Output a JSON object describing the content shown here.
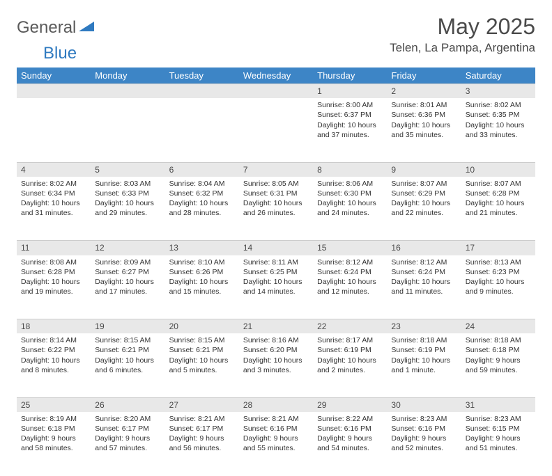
{
  "logo": {
    "word1": "General",
    "word2": "Blue"
  },
  "title": "May 2025",
  "location": "Telen, La Pampa, Argentina",
  "header_bg": "#3d85c6",
  "daynum_bg": "#e8e8e8",
  "divider_color": "#3d85c6",
  "days": [
    "Sunday",
    "Monday",
    "Tuesday",
    "Wednesday",
    "Thursday",
    "Friday",
    "Saturday"
  ],
  "weeks": [
    [
      null,
      null,
      null,
      null,
      {
        "n": "1",
        "sr": "Sunrise: 8:00 AM",
        "ss": "Sunset: 6:37 PM",
        "dl": "Daylight: 10 hours and 37 minutes."
      },
      {
        "n": "2",
        "sr": "Sunrise: 8:01 AM",
        "ss": "Sunset: 6:36 PM",
        "dl": "Daylight: 10 hours and 35 minutes."
      },
      {
        "n": "3",
        "sr": "Sunrise: 8:02 AM",
        "ss": "Sunset: 6:35 PM",
        "dl": "Daylight: 10 hours and 33 minutes."
      }
    ],
    [
      {
        "n": "4",
        "sr": "Sunrise: 8:02 AM",
        "ss": "Sunset: 6:34 PM",
        "dl": "Daylight: 10 hours and 31 minutes."
      },
      {
        "n": "5",
        "sr": "Sunrise: 8:03 AM",
        "ss": "Sunset: 6:33 PM",
        "dl": "Daylight: 10 hours and 29 minutes."
      },
      {
        "n": "6",
        "sr": "Sunrise: 8:04 AM",
        "ss": "Sunset: 6:32 PM",
        "dl": "Daylight: 10 hours and 28 minutes."
      },
      {
        "n": "7",
        "sr": "Sunrise: 8:05 AM",
        "ss": "Sunset: 6:31 PM",
        "dl": "Daylight: 10 hours and 26 minutes."
      },
      {
        "n": "8",
        "sr": "Sunrise: 8:06 AM",
        "ss": "Sunset: 6:30 PM",
        "dl": "Daylight: 10 hours and 24 minutes."
      },
      {
        "n": "9",
        "sr": "Sunrise: 8:07 AM",
        "ss": "Sunset: 6:29 PM",
        "dl": "Daylight: 10 hours and 22 minutes."
      },
      {
        "n": "10",
        "sr": "Sunrise: 8:07 AM",
        "ss": "Sunset: 6:28 PM",
        "dl": "Daylight: 10 hours and 21 minutes."
      }
    ],
    [
      {
        "n": "11",
        "sr": "Sunrise: 8:08 AM",
        "ss": "Sunset: 6:28 PM",
        "dl": "Daylight: 10 hours and 19 minutes."
      },
      {
        "n": "12",
        "sr": "Sunrise: 8:09 AM",
        "ss": "Sunset: 6:27 PM",
        "dl": "Daylight: 10 hours and 17 minutes."
      },
      {
        "n": "13",
        "sr": "Sunrise: 8:10 AM",
        "ss": "Sunset: 6:26 PM",
        "dl": "Daylight: 10 hours and 15 minutes."
      },
      {
        "n": "14",
        "sr": "Sunrise: 8:11 AM",
        "ss": "Sunset: 6:25 PM",
        "dl": "Daylight: 10 hours and 14 minutes."
      },
      {
        "n": "15",
        "sr": "Sunrise: 8:12 AM",
        "ss": "Sunset: 6:24 PM",
        "dl": "Daylight: 10 hours and 12 minutes."
      },
      {
        "n": "16",
        "sr": "Sunrise: 8:12 AM",
        "ss": "Sunset: 6:24 PM",
        "dl": "Daylight: 10 hours and 11 minutes."
      },
      {
        "n": "17",
        "sr": "Sunrise: 8:13 AM",
        "ss": "Sunset: 6:23 PM",
        "dl": "Daylight: 10 hours and 9 minutes."
      }
    ],
    [
      {
        "n": "18",
        "sr": "Sunrise: 8:14 AM",
        "ss": "Sunset: 6:22 PM",
        "dl": "Daylight: 10 hours and 8 minutes."
      },
      {
        "n": "19",
        "sr": "Sunrise: 8:15 AM",
        "ss": "Sunset: 6:21 PM",
        "dl": "Daylight: 10 hours and 6 minutes."
      },
      {
        "n": "20",
        "sr": "Sunrise: 8:15 AM",
        "ss": "Sunset: 6:21 PM",
        "dl": "Daylight: 10 hours and 5 minutes."
      },
      {
        "n": "21",
        "sr": "Sunrise: 8:16 AM",
        "ss": "Sunset: 6:20 PM",
        "dl": "Daylight: 10 hours and 3 minutes."
      },
      {
        "n": "22",
        "sr": "Sunrise: 8:17 AM",
        "ss": "Sunset: 6:19 PM",
        "dl": "Daylight: 10 hours and 2 minutes."
      },
      {
        "n": "23",
        "sr": "Sunrise: 8:18 AM",
        "ss": "Sunset: 6:19 PM",
        "dl": "Daylight: 10 hours and 1 minute."
      },
      {
        "n": "24",
        "sr": "Sunrise: 8:18 AM",
        "ss": "Sunset: 6:18 PM",
        "dl": "Daylight: 9 hours and 59 minutes."
      }
    ],
    [
      {
        "n": "25",
        "sr": "Sunrise: 8:19 AM",
        "ss": "Sunset: 6:18 PM",
        "dl": "Daylight: 9 hours and 58 minutes."
      },
      {
        "n": "26",
        "sr": "Sunrise: 8:20 AM",
        "ss": "Sunset: 6:17 PM",
        "dl": "Daylight: 9 hours and 57 minutes."
      },
      {
        "n": "27",
        "sr": "Sunrise: 8:21 AM",
        "ss": "Sunset: 6:17 PM",
        "dl": "Daylight: 9 hours and 56 minutes."
      },
      {
        "n": "28",
        "sr": "Sunrise: 8:21 AM",
        "ss": "Sunset: 6:16 PM",
        "dl": "Daylight: 9 hours and 55 minutes."
      },
      {
        "n": "29",
        "sr": "Sunrise: 8:22 AM",
        "ss": "Sunset: 6:16 PM",
        "dl": "Daylight: 9 hours and 54 minutes."
      },
      {
        "n": "30",
        "sr": "Sunrise: 8:23 AM",
        "ss": "Sunset: 6:16 PM",
        "dl": "Daylight: 9 hours and 52 minutes."
      },
      {
        "n": "31",
        "sr": "Sunrise: 8:23 AM",
        "ss": "Sunset: 6:15 PM",
        "dl": "Daylight: 9 hours and 51 minutes."
      }
    ]
  ]
}
